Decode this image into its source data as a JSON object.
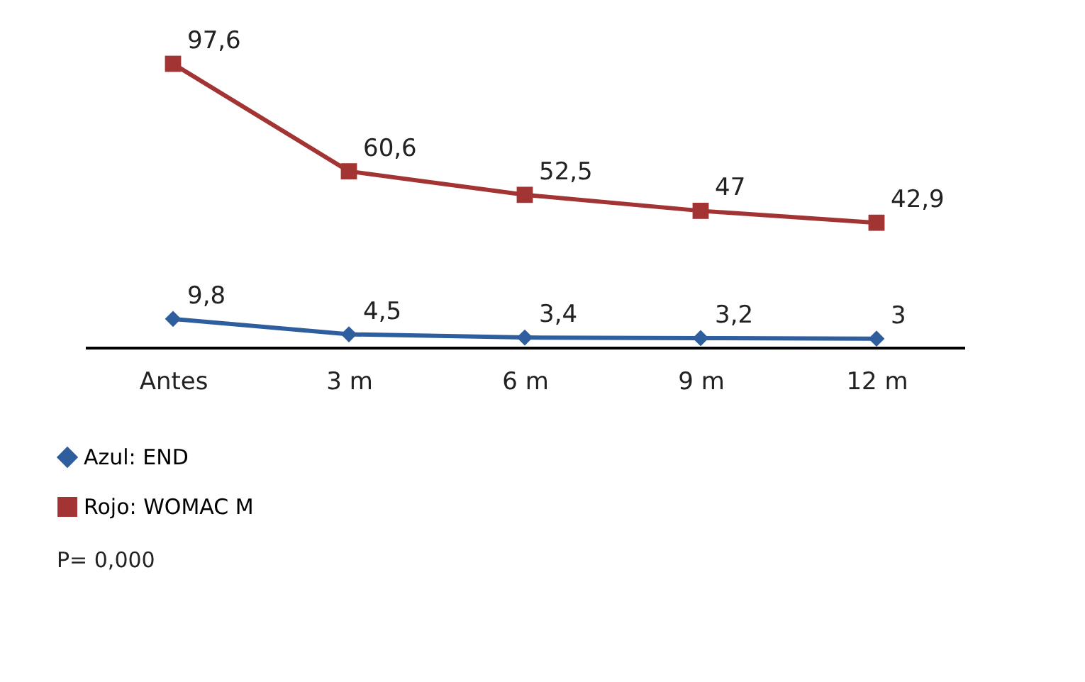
{
  "chart_data": {
    "type": "line",
    "categories": [
      "Antes",
      "3 m",
      "6 m",
      "9 m",
      "12  m"
    ],
    "series": [
      {
        "name": "Azul: END",
        "color": "#2e5e9e",
        "marker": "diamond",
        "values": [
          9.8,
          4.5,
          3.4,
          3.2,
          3
        ],
        "value_labels": [
          "9,8",
          "4,5",
          "3,4",
          "3,2",
          "3"
        ]
      },
      {
        "name": "Rojo: WOMAC M",
        "color": "#a33434",
        "marker": "square",
        "values": [
          97.6,
          60.6,
          52.5,
          47,
          42.9
        ],
        "value_labels": [
          "97,6",
          "60,6",
          "52,5",
          "47",
          "42,9"
        ]
      }
    ],
    "tick_labels": "x",
    "grid": false,
    "legend": "bottom left",
    "line_style": "solid",
    "annotations": [
      "P= 0,000"
    ]
  }
}
